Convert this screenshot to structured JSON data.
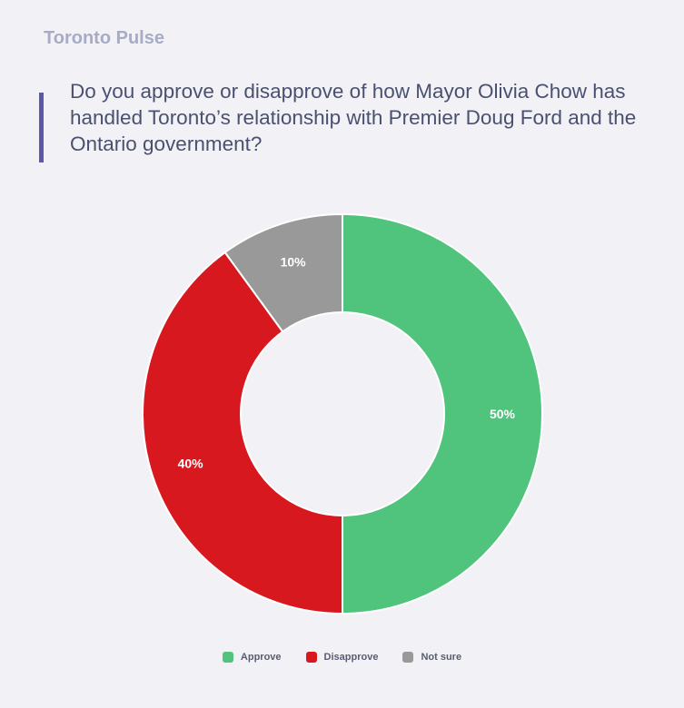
{
  "header": {
    "brand": "Toronto Pulse",
    "question": "Do you approve or disapprove of how Mayor Olivia Chow has handled Toronto’s relationship with Premier Doug Ford and the Ontario government?"
  },
  "colors": {
    "accent_bar": "#5c58a8",
    "approve": "#50c47c",
    "disapprove": "#d7191f",
    "not_sure": "#999999"
  },
  "chart_data": {
    "type": "pie",
    "variant": "donut",
    "categories": [
      "Approve",
      "Disapprove",
      "Not sure"
    ],
    "values": [
      50,
      40,
      10
    ],
    "labels": [
      "50%",
      "40%",
      "10%"
    ],
    "colors": [
      "#50c47c",
      "#d7191f",
      "#999999"
    ],
    "legend_position": "bottom"
  }
}
